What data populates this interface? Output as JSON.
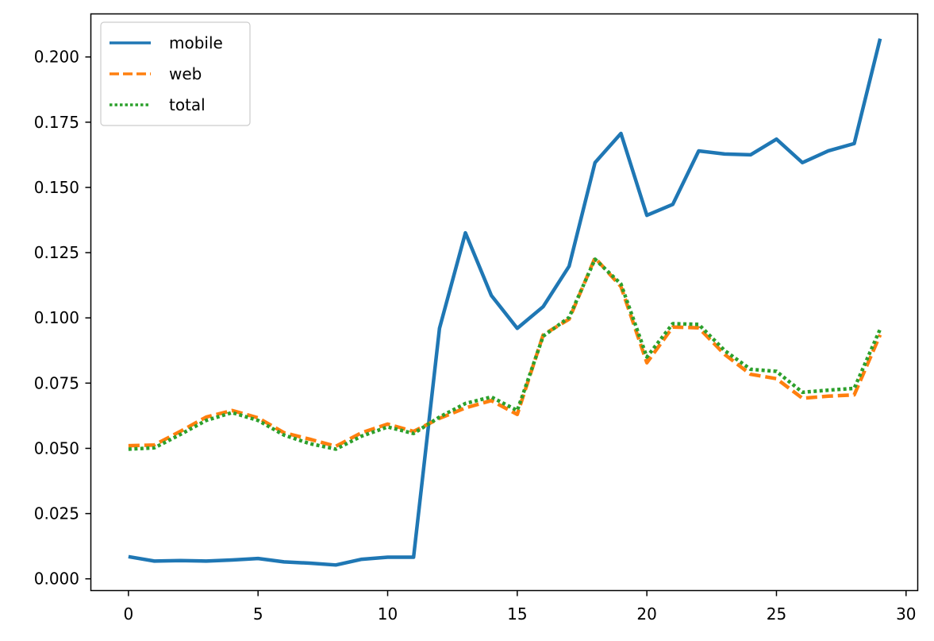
{
  "chart_data": {
    "type": "line",
    "title": "",
    "xlabel": "",
    "ylabel": "",
    "xlim": [
      -1.45,
      30.45
    ],
    "ylim": [
      -0.0045,
      0.2165
    ],
    "xticks": [
      0,
      5,
      10,
      15,
      20,
      25,
      30
    ],
    "xtick_labels": [
      "0",
      "5",
      "10",
      "15",
      "20",
      "25",
      "30"
    ],
    "yticks": [
      0.0,
      0.025,
      0.05,
      0.075,
      0.1,
      0.125,
      0.15,
      0.175,
      0.2
    ],
    "ytick_labels": [
      "0.000",
      "0.025",
      "0.050",
      "0.075",
      "0.100",
      "0.125",
      "0.150",
      "0.175",
      "0.200"
    ],
    "grid": false,
    "legend_position": "top-left",
    "x": [
      0,
      1,
      2,
      3,
      4,
      5,
      6,
      7,
      8,
      9,
      10,
      11,
      12,
      13,
      14,
      15,
      16,
      17,
      18,
      19,
      20,
      21,
      22,
      23,
      24,
      25,
      26,
      27,
      28,
      29
    ],
    "series": [
      {
        "name": "mobile",
        "color": "#1f77b4",
        "style": "solid",
        "values": [
          0.0085,
          0.0068,
          0.007,
          0.0068,
          0.0072,
          0.0078,
          0.0065,
          0.006,
          0.0053,
          0.0075,
          0.0083,
          0.0083,
          0.096,
          0.1326,
          0.1086,
          0.096,
          0.1043,
          0.1198,
          0.1595,
          0.1707,
          0.1393,
          0.1435,
          0.164,
          0.1628,
          0.1625,
          0.1685,
          0.1595,
          0.164,
          0.1668,
          0.207
        ]
      },
      {
        "name": "web",
        "color": "#ff7f0e",
        "style": "dashed",
        "values": [
          0.051,
          0.0513,
          0.0565,
          0.062,
          0.0645,
          0.0617,
          0.056,
          0.0535,
          0.0508,
          0.056,
          0.0593,
          0.0565,
          0.0615,
          0.0655,
          0.0683,
          0.063,
          0.0935,
          0.0995,
          0.123,
          0.112,
          0.0828,
          0.0965,
          0.0962,
          0.086,
          0.0784,
          0.0767,
          0.0692,
          0.07,
          0.0705,
          0.0935
        ]
      },
      {
        "name": "total",
        "color": "#2ca02c",
        "style": "dotted",
        "values": [
          0.0497,
          0.0502,
          0.0553,
          0.0607,
          0.0637,
          0.0607,
          0.0551,
          0.0518,
          0.0497,
          0.0547,
          0.0582,
          0.0557,
          0.062,
          0.0672,
          0.0697,
          0.0645,
          0.093,
          0.1002,
          0.1225,
          0.113,
          0.085,
          0.0978,
          0.0975,
          0.0875,
          0.0803,
          0.0795,
          0.0715,
          0.0723,
          0.073,
          0.0957
        ]
      }
    ]
  }
}
